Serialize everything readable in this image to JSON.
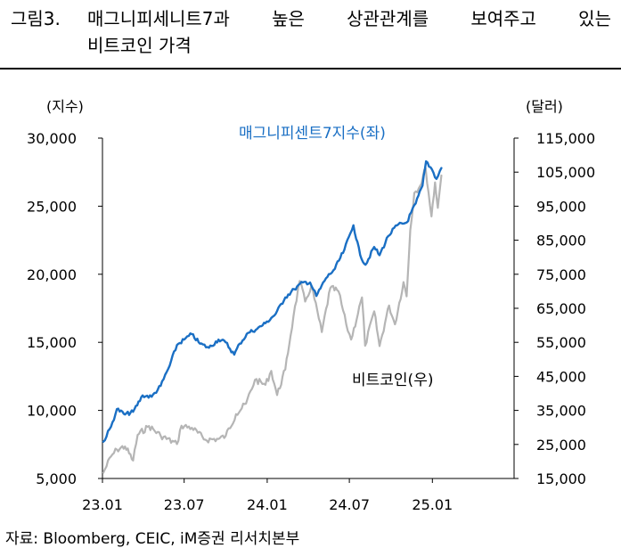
{
  "header": {
    "figure_no": "그림3.",
    "title_line1_words": [
      "매그니피세니트7과",
      "높은",
      "상관관계를",
      "보여주고",
      "있는"
    ],
    "title_line2": "비트코인 가격"
  },
  "source": "자료: Bloomberg, CEIC, iM증권 리서치본부",
  "colors": {
    "blue": "#1a6fc4",
    "gray": "#b5b5b5"
  },
  "chart_data": {
    "type": "line",
    "left_unit": "(지수)",
    "right_unit": "(달러)",
    "left_ylim": [
      5000,
      30000
    ],
    "right_ylim": [
      15000,
      115000
    ],
    "left_ticks": [
      "30,000",
      "25,000",
      "20,000",
      "15,000",
      "10,000",
      "5,000"
    ],
    "right_ticks": [
      "115,000",
      "105,000",
      "95,000",
      "85,000",
      "75,000",
      "65,000",
      "55,000",
      "45,000",
      "35,000",
      "25,000",
      "15,000"
    ],
    "x_ticks": [
      "23.01",
      "23.07",
      "24.01",
      "24.07",
      "25.01"
    ],
    "x_range": [
      "2023-01",
      "2025-07"
    ],
    "series": [
      {
        "name": "매그니피센트7지수(좌)",
        "axis": "left",
        "color": "#1a6fc4",
        "points": [
          [
            "2023-01-03",
            7700
          ],
          [
            "2023-01-20",
            8800
          ],
          [
            "2023-02-02",
            10100
          ],
          [
            "2023-02-20",
            9700
          ],
          [
            "2023-03-10",
            9900
          ],
          [
            "2023-03-31",
            11100
          ],
          [
            "2023-04-20",
            11000
          ],
          [
            "2023-05-10",
            11800
          ],
          [
            "2023-05-30",
            13300
          ],
          [
            "2023-06-15",
            14800
          ],
          [
            "2023-07-01",
            15200
          ],
          [
            "2023-07-18",
            15600
          ],
          [
            "2023-08-05",
            14900
          ],
          [
            "2023-08-25",
            14600
          ],
          [
            "2023-09-15",
            15200
          ],
          [
            "2023-10-01",
            15000
          ],
          [
            "2023-10-20",
            14100
          ],
          [
            "2023-11-01",
            14900
          ],
          [
            "2023-11-20",
            15700
          ],
          [
            "2023-12-10",
            16000
          ],
          [
            "2023-12-28",
            16400
          ],
          [
            "2024-01-20",
            17100
          ],
          [
            "2024-02-10",
            18300
          ],
          [
            "2024-03-01",
            18900
          ],
          [
            "2024-03-20",
            19400
          ],
          [
            "2024-04-05",
            19400
          ],
          [
            "2024-04-19",
            18400
          ],
          [
            "2024-05-10",
            19700
          ],
          [
            "2024-05-30",
            20400
          ],
          [
            "2024-06-20",
            21800
          ],
          [
            "2024-07-10",
            23600
          ],
          [
            "2024-07-25",
            21400
          ],
          [
            "2024-08-06",
            20700
          ],
          [
            "2024-08-25",
            22000
          ],
          [
            "2024-09-06",
            21400
          ],
          [
            "2024-09-25",
            22800
          ],
          [
            "2024-10-15",
            23600
          ],
          [
            "2024-11-05",
            23800
          ],
          [
            "2024-11-25",
            25200
          ],
          [
            "2024-12-10",
            26500
          ],
          [
            "2024-12-18",
            28300
          ],
          [
            "2024-12-31",
            27700
          ],
          [
            "2025-01-10",
            27000
          ],
          [
            "2025-01-21",
            27800
          ]
        ]
      },
      {
        "name": "비트코인(우)",
        "axis": "right",
        "color": "#b5b5b5",
        "points": [
          [
            "2023-01-03",
            16700
          ],
          [
            "2023-01-20",
            21500
          ],
          [
            "2023-02-02",
            23500
          ],
          [
            "2023-02-20",
            24400
          ],
          [
            "2023-03-10",
            20300
          ],
          [
            "2023-03-20",
            27800
          ],
          [
            "2023-04-14",
            30400
          ],
          [
            "2023-05-10",
            27600
          ],
          [
            "2023-06-15",
            25100
          ],
          [
            "2023-06-25",
            30500
          ],
          [
            "2023-07-18",
            29900
          ],
          [
            "2023-08-17",
            26400
          ],
          [
            "2023-09-15",
            26600
          ],
          [
            "2023-10-01",
            27500
          ],
          [
            "2023-10-24",
            33900
          ],
          [
            "2023-11-15",
            37000
          ],
          [
            "2023-12-05",
            44000
          ],
          [
            "2023-12-28",
            42500
          ],
          [
            "2024-01-10",
            46600
          ],
          [
            "2024-01-23",
            39500
          ],
          [
            "2024-02-10",
            47000
          ],
          [
            "2024-02-28",
            62500
          ],
          [
            "2024-03-13",
            73000
          ],
          [
            "2024-03-25",
            67000
          ],
          [
            "2024-04-08",
            71600
          ],
          [
            "2024-05-01",
            58000
          ],
          [
            "2024-05-20",
            71000
          ],
          [
            "2024-06-07",
            70000
          ],
          [
            "2024-06-24",
            60300
          ],
          [
            "2024-07-05",
            55800
          ],
          [
            "2024-07-29",
            68200
          ],
          [
            "2024-08-05",
            54000
          ],
          [
            "2024-08-25",
            64100
          ],
          [
            "2024-09-06",
            53900
          ],
          [
            "2024-09-27",
            65800
          ],
          [
            "2024-10-10",
            60300
          ],
          [
            "2024-10-29",
            72700
          ],
          [
            "2024-11-05",
            68500
          ],
          [
            "2024-11-13",
            88000
          ],
          [
            "2024-11-22",
            98900
          ],
          [
            "2024-12-05",
            101000
          ],
          [
            "2024-12-17",
            106200
          ],
          [
            "2024-12-30",
            92000
          ],
          [
            "2025-01-07",
            102000
          ],
          [
            "2025-01-13",
            94500
          ],
          [
            "2025-01-21",
            104000
          ]
        ]
      }
    ]
  }
}
